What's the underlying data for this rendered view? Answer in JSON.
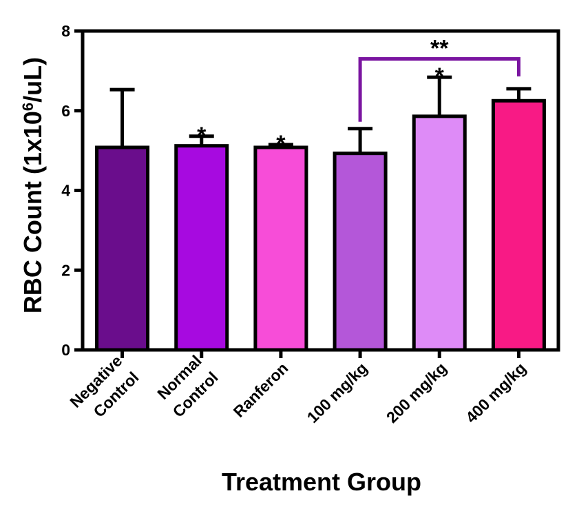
{
  "chart_data": {
    "type": "bar",
    "title": "",
    "xlabel": "Treatment Group",
    "ylabel_main": "RBC Count (1x10",
    "ylabel_sup": "6",
    "ylabel_end": "/uL)",
    "ylim": [
      0,
      8
    ],
    "yticks": [
      0,
      2,
      4,
      6,
      8
    ],
    "ytick_labels": [
      "0",
      "2",
      "4",
      "6",
      "8"
    ],
    "grid": false,
    "legend": "none",
    "categories": [
      [
        "Negative",
        "Control"
      ],
      [
        "Normal",
        "Control"
      ],
      [
        "Ranferon"
      ],
      [
        "100 mg/kg"
      ],
      [
        "200 mg/kg"
      ],
      [
        "400 mg/kg"
      ]
    ],
    "values": [
      5.08,
      5.12,
      5.08,
      4.93,
      5.86,
      6.25
    ],
    "errors": [
      1.45,
      0.24,
      0.07,
      0.62,
      0.98,
      0.3
    ],
    "colors": [
      "#6a0d8c",
      "#a70ae0",
      "#f74dd8",
      "#b457d9",
      "#de8bf7",
      "#f81a85"
    ],
    "annotations": [
      {
        "bar_index": 1,
        "text": "*"
      },
      {
        "bar_index": 2,
        "text": "*"
      },
      {
        "bar_index": 4,
        "text": "*"
      }
    ],
    "bracket": {
      "from": 3,
      "to": 5,
      "y": 7.3,
      "text": "**",
      "color": "#7a14a0"
    }
  }
}
